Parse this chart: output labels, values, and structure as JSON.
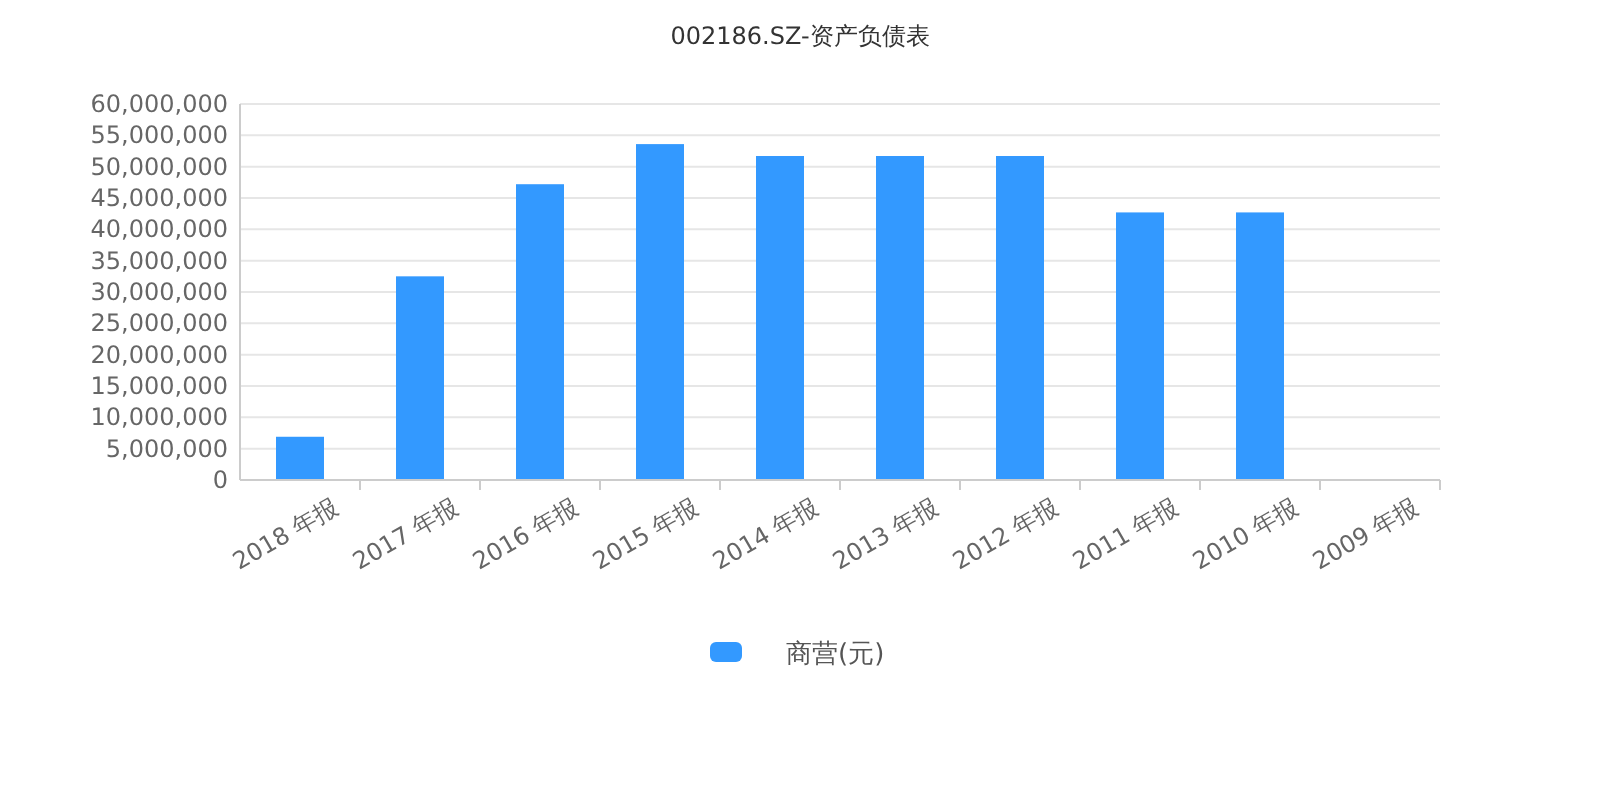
{
  "chart_data": {
    "type": "bar",
    "title": "002186.SZ-资产负债表",
    "categories": [
      "2018 年报",
      "2017 年报",
      "2016 年报",
      "2015 年报",
      "2014 年报",
      "2013 年报",
      "2012 年报",
      "2011 年报",
      "2010 年报",
      "2009 年报"
    ],
    "series": [
      {
        "name": "商营(元)",
        "color": "#3399ff",
        "values": [
          6900000,
          32500000,
          47200000,
          53600000,
          51700000,
          51700000,
          51700000,
          42700000,
          42700000,
          null
        ]
      }
    ],
    "ylim": [
      0,
      60000000
    ],
    "yticks": [
      {
        "value": 0,
        "label": "0"
      },
      {
        "value": 5000000,
        "label": "5,000,000"
      },
      {
        "value": 10000000,
        "label": "10,000,000"
      },
      {
        "value": 15000000,
        "label": "15,000,000"
      },
      {
        "value": 20000000,
        "label": "20,000,000"
      },
      {
        "value": 25000000,
        "label": "25,000,000"
      },
      {
        "value": 30000000,
        "label": "30,000,000"
      },
      {
        "value": 35000000,
        "label": "35,000,000"
      },
      {
        "value": 40000000,
        "label": "40,000,000"
      },
      {
        "value": 45000000,
        "label": "45,000,000"
      },
      {
        "value": 50000000,
        "label": "50,000,000"
      },
      {
        "value": 55000000,
        "label": "55,000,000"
      },
      {
        "value": 60000000,
        "label": "60,000,000"
      }
    ],
    "grid": "y",
    "legend": "bottom"
  }
}
